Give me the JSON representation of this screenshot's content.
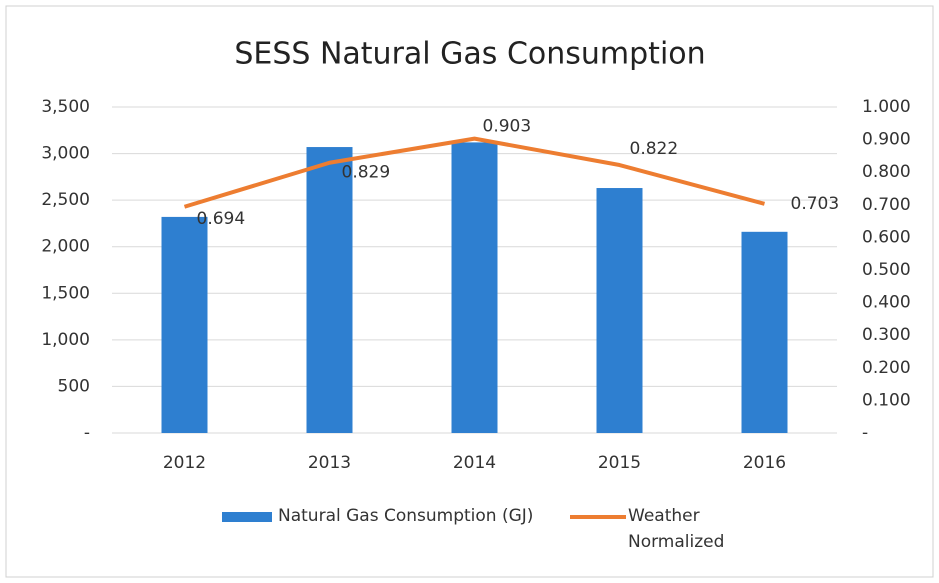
{
  "chart_data": {
    "type": "bar",
    "title": "SESS Natural Gas Consumption",
    "categories": [
      "2012",
      "2013",
      "2014",
      "2015",
      "2016"
    ],
    "series": [
      {
        "name": "Natural Gas  Consumption (GJ)",
        "type": "bar",
        "color": "#2e7fd0",
        "values": [
          2320,
          3070,
          3120,
          2630,
          2160
        ]
      },
      {
        "name": "Weather Normalized",
        "type": "line",
        "axis": "y2",
        "color": "#ed7d31",
        "values": [
          0.694,
          0.829,
          0.903,
          0.822,
          0.703
        ]
      }
    ],
    "ylim": [
      0,
      3500
    ],
    "yticks": [
      {
        "value": 0,
        "label": "-"
      },
      500,
      {
        "value": 1000,
        "label": "1,000"
      },
      {
        "value": 1500,
        "label": "1,500"
      },
      {
        "value": 2000,
        "label": "2,000"
      },
      {
        "value": 2500,
        "label": "2,500"
      },
      {
        "value": 3000,
        "label": "3,000"
      },
      {
        "value": 3500,
        "label": "3,500"
      }
    ],
    "y2lim": [
      0,
      1
    ],
    "y2ticks": [
      {
        "value": 0,
        "label": "-"
      },
      {
        "value": 0.1,
        "label": "0.100"
      },
      {
        "value": 0.2,
        "label": "0.200"
      },
      {
        "value": 0.3,
        "label": "0.300"
      },
      {
        "value": 0.4,
        "label": "0.400"
      },
      {
        "value": 0.5,
        "label": "0.500"
      },
      {
        "value": 0.6,
        "label": "0.600"
      },
      {
        "value": 0.7,
        "label": "0.700"
      },
      {
        "value": 0.8,
        "label": "0.800"
      },
      {
        "value": 0.9,
        "label": "0.900"
      },
      {
        "value": 1,
        "label": "1.000"
      }
    ],
    "grid": true,
    "legend": "bottom"
  }
}
